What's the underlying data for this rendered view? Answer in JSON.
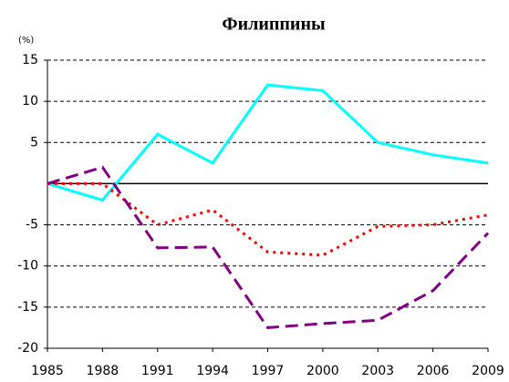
{
  "chart_data": {
    "type": "line",
    "title": "Филиппины",
    "y_label": "(%)",
    "x": [
      1985,
      1988,
      1991,
      1994,
      1997,
      2000,
      2003,
      2006,
      2009
    ],
    "series": [
      {
        "color": "#00ffff",
        "style": "solid",
        "values": [
          0,
          -2,
          6,
          2.5,
          12,
          11.3,
          5,
          3.5,
          2.5
        ]
      },
      {
        "color": "#ff0000",
        "style": "dotted",
        "values": [
          0,
          0,
          -5,
          -3.2,
          -8.3,
          -8.7,
          -5.2,
          -5,
          -3.8
        ]
      },
      {
        "color": "#800080",
        "style": "dashed",
        "values": [
          0,
          2,
          -7.8,
          -7.7,
          -17.5,
          -17,
          -16.6,
          -13,
          -6
        ]
      }
    ],
    "xlim": [
      1985,
      2009
    ],
    "xticks": [
      1985,
      1988,
      1991,
      1994,
      1997,
      2000,
      2003,
      2006,
      2009
    ],
    "ylim": [
      -20,
      15
    ],
    "yticks": [
      -20,
      -15,
      -10,
      -5,
      5,
      10,
      15
    ],
    "grid": true
  }
}
